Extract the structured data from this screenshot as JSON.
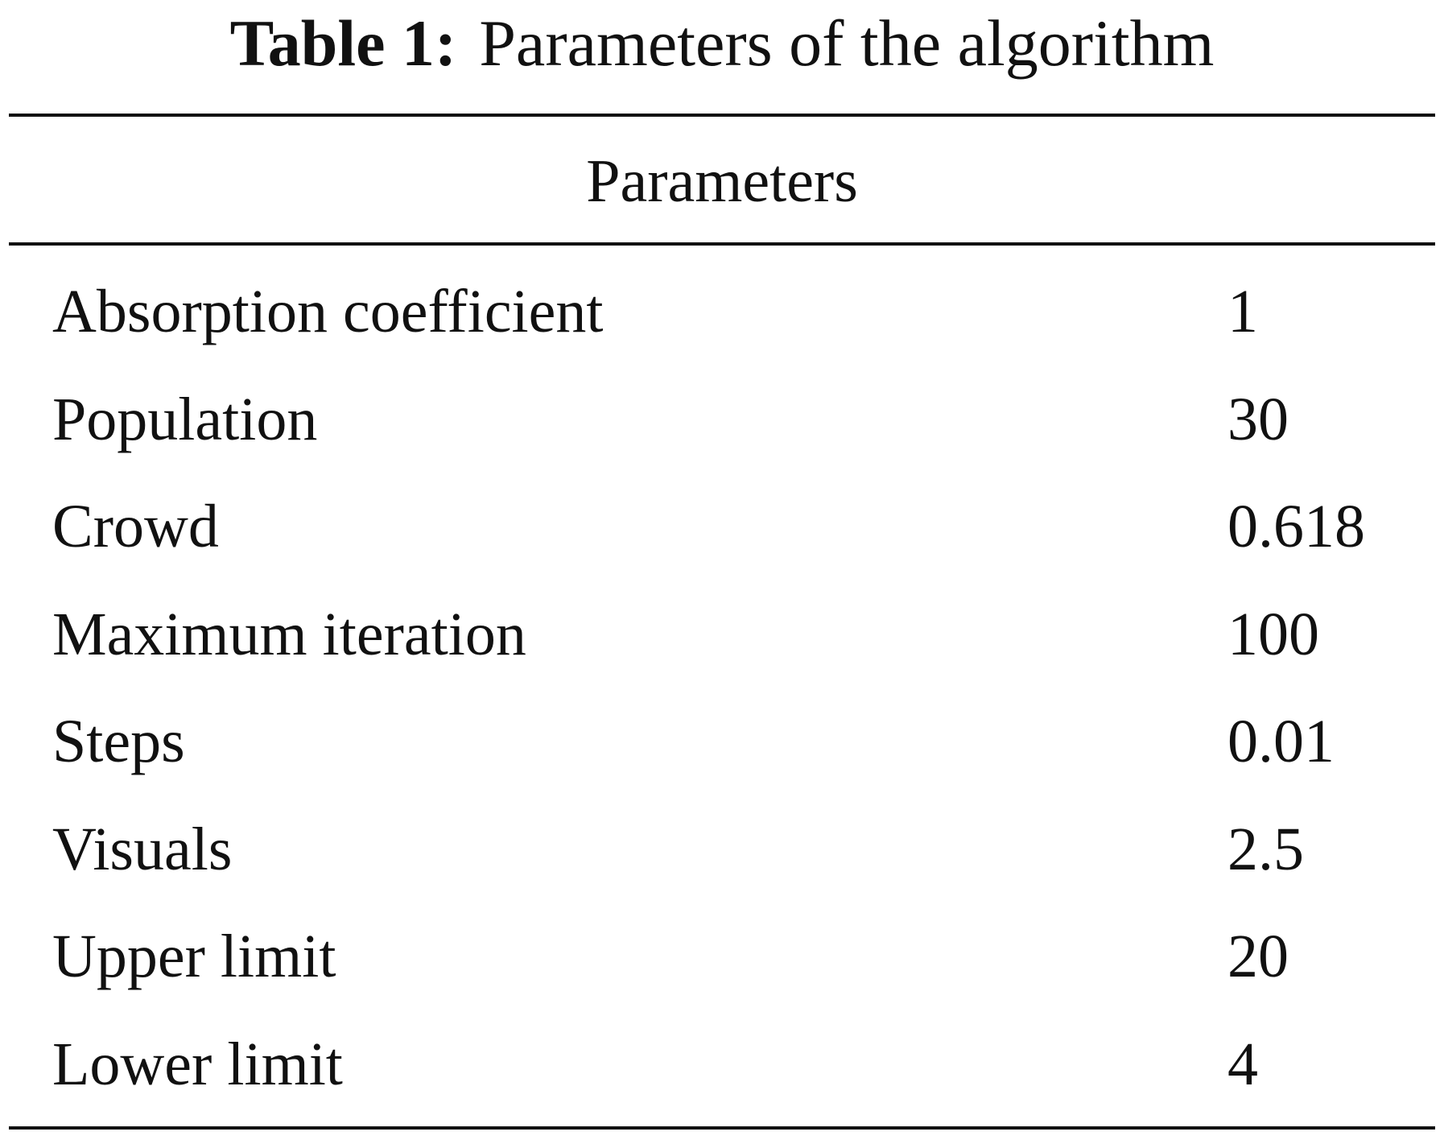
{
  "caption": {
    "label": "Table 1:",
    "title": "Parameters of the algorithm"
  },
  "table": {
    "header": "Parameters",
    "rows": [
      [
        "Absorption coefficient",
        "1"
      ],
      [
        "Population",
        "30"
      ],
      [
        "Crowd",
        "0.618"
      ],
      [
        "Maximum iteration",
        "100"
      ],
      [
        "Steps",
        "0.01"
      ],
      [
        "Visuals",
        "2.5"
      ],
      [
        "Upper limit",
        "20"
      ],
      [
        "Lower limit",
        "4"
      ]
    ]
  }
}
